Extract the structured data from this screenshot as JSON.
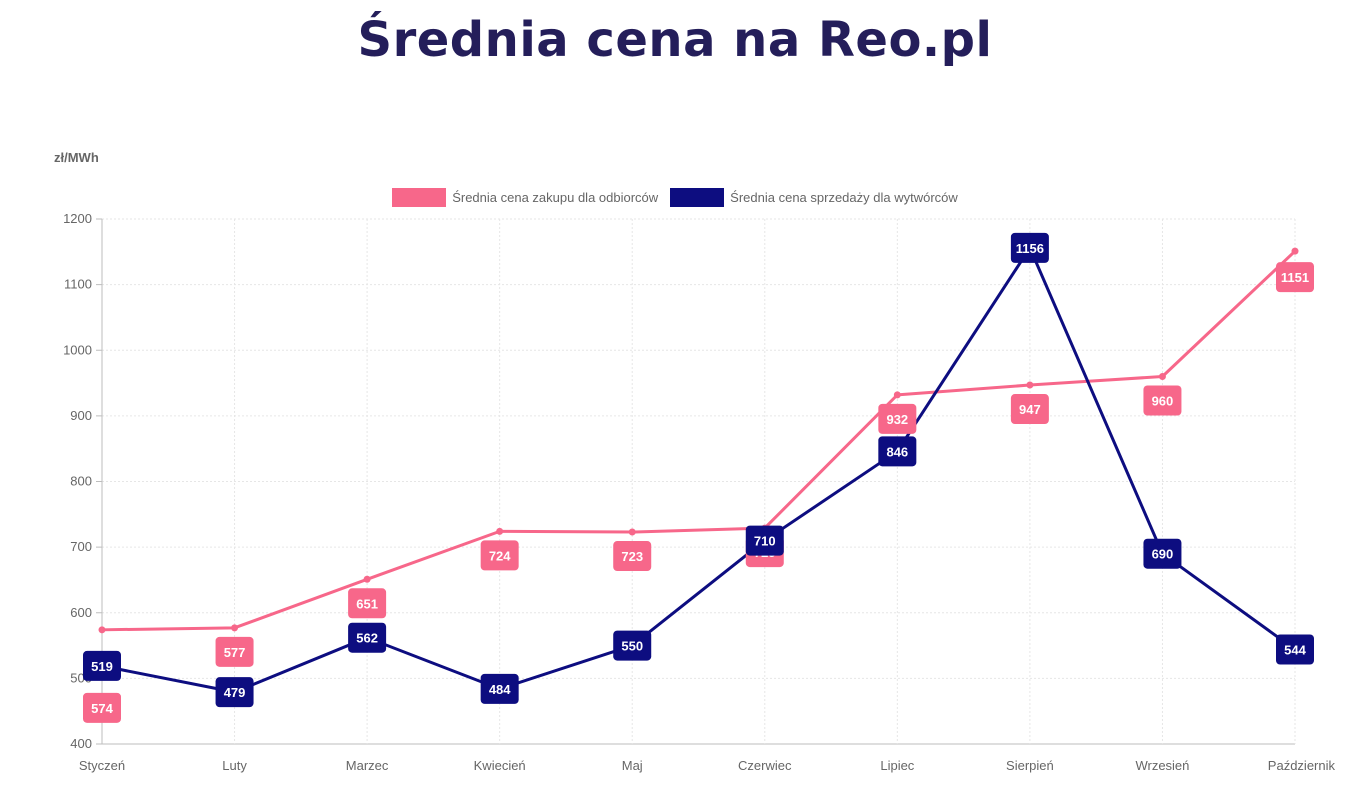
{
  "header": {
    "title": "Średnia cena na Reo.pl"
  },
  "chart_data": {
    "type": "line",
    "title": "Średnia cena na Reo.pl",
    "ylabel": "zł/MWh",
    "xlabel": "",
    "ylim": [
      400,
      1200
    ],
    "yticks": [
      400,
      500,
      600,
      700,
      800,
      900,
      1000,
      1100,
      1200
    ],
    "grid": true,
    "legend_position": "top",
    "categories": [
      "Styczeń",
      "Luty",
      "Marzec",
      "Kwiecień",
      "Maj",
      "Czerwiec",
      "Lipiec",
      "Sierpień",
      "Wrzesień",
      "Październik"
    ],
    "series": [
      {
        "name": "Średnia cena zakupu dla odbiorców",
        "color": "#f7678a",
        "values": [
          574,
          577,
          651,
          724,
          723,
          729,
          932,
          947,
          960,
          1151
        ]
      },
      {
        "name": "Średnia cena sprzedaży dla wytwórców",
        "color": "#0d0d80",
        "values": [
          519,
          479,
          562,
          484,
          550,
          710,
          846,
          1156,
          690,
          544
        ]
      }
    ]
  }
}
